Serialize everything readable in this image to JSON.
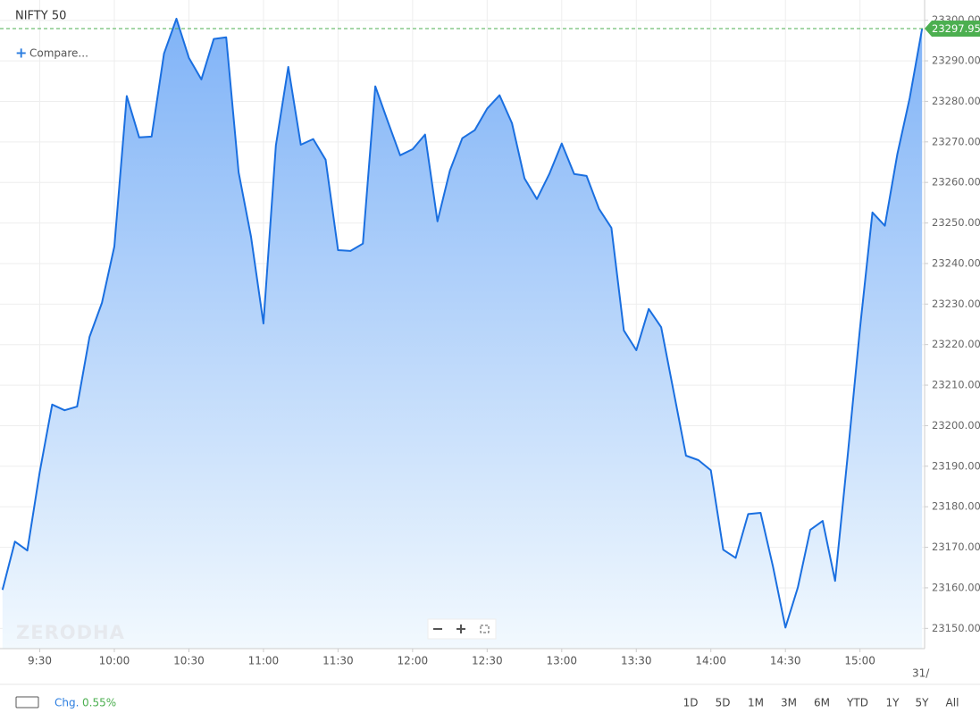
{
  "chart_data": {
    "type": "area",
    "title": "NIFTY 50",
    "compare": "Compare...",
    "watermark": "ZERODHA",
    "x": [
      "9:15",
      "9:20",
      "9:25",
      "9:30",
      "9:35",
      "9:40",
      "9:45",
      "9:50",
      "9:55",
      "10:00",
      "10:05",
      "10:10",
      "10:15",
      "10:20",
      "10:25",
      "10:30",
      "10:35",
      "10:40",
      "10:45",
      "10:50",
      "10:55",
      "11:00",
      "11:05",
      "11:10",
      "11:15",
      "11:20",
      "11:25",
      "11:30",
      "11:35",
      "11:40",
      "11:45",
      "11:50",
      "11:55",
      "12:00",
      "12:05",
      "12:10",
      "12:15",
      "12:20",
      "12:25",
      "12:30",
      "12:35",
      "12:40",
      "12:45",
      "12:50",
      "12:55",
      "13:00",
      "13:05",
      "13:10",
      "13:15",
      "13:20",
      "13:25",
      "13:30",
      "13:35",
      "13:40",
      "13:45",
      "13:50",
      "13:55",
      "14:00",
      "14:05",
      "14:10",
      "14:15",
      "14:20",
      "14:25",
      "14:30",
      "14:35",
      "14:40",
      "14:45",
      "14:50",
      "14:55",
      "15:00",
      "15:05",
      "15:10",
      "15:15",
      "15:20",
      "15:25"
    ],
    "values": [
      23159.5,
      23171.4,
      23169.2,
      23188.6,
      23205.2,
      23203.8,
      23204.7,
      23221.9,
      23230.3,
      23244.2,
      23281.3,
      23271.1,
      23271.3,
      23291.8,
      23300.4,
      23290.7,
      23285.4,
      23295.4,
      23295.8,
      23262.5,
      23246.6,
      23225.2,
      23269.1,
      23288.5,
      23269.3,
      23270.7,
      23265.6,
      23243.3,
      23243.1,
      23244.9,
      23283.7,
      23275.1,
      23266.7,
      23268.2,
      23271.8,
      23250.4,
      23262.9,
      23270.9,
      23272.9,
      23278.2,
      23281.5,
      23274.6,
      23261.0,
      23255.9,
      23262.1,
      23269.6,
      23262.1,
      23261.6,
      23253.5,
      23248.8,
      23223.5,
      23218.6,
      23228.8,
      23224.3,
      23208.5,
      23192.6,
      23191.5,
      23189.0,
      23169.4,
      23167.4,
      23178.2,
      23178.5,
      23165.2,
      23150.2,
      23160.1,
      23174.3,
      23176.5,
      23161.7,
      23192.4,
      23224.1,
      23252.6,
      23249.3,
      23266.9,
      23280.8,
      23297.95
    ],
    "color": "#1a6fe0",
    "xlim": [
      "9:14",
      "15:26"
    ],
    "xticks": [
      "9:30",
      "10:00",
      "10:30",
      "11:00",
      "11:30",
      "12:00",
      "12:30",
      "13:00",
      "13:30",
      "14:00",
      "14:30",
      "15:00"
    ],
    "date_label": "31/",
    "ylim": [
      23145,
      23305
    ],
    "yticks": [
      {
        "value": 23150,
        "label": "23150.00"
      },
      {
        "value": 23160,
        "label": "23160.00"
      },
      {
        "value": 23170,
        "label": "23170.00"
      },
      {
        "value": 23180,
        "label": "23180.00"
      },
      {
        "value": 23190,
        "label": "23190.00"
      },
      {
        "value": 23200,
        "label": "23200.00"
      },
      {
        "value": 23210,
        "label": "23210.00"
      },
      {
        "value": 23220,
        "label": "23220.00"
      },
      {
        "value": 23230,
        "label": "23230.00"
      },
      {
        "value": 23240,
        "label": "23240.00"
      },
      {
        "value": 23250,
        "label": "23250.00"
      },
      {
        "value": 23260,
        "label": "23260.00"
      },
      {
        "value": 23270,
        "label": "23270.00"
      },
      {
        "value": 23280,
        "label": "23280.00"
      },
      {
        "value": 23290,
        "label": "23290.00"
      },
      {
        "value": 23300,
        "label": "23300.00"
      }
    ],
    "grid": true,
    "last_price_color": "#4caf50",
    "chg_label": "Chg.",
    "chg": "0.55%",
    "ranges": [
      "1D",
      "5D",
      "1M",
      "3M",
      "6M",
      "YTD",
      "1Y",
      "5Y",
      "All"
    ]
  }
}
